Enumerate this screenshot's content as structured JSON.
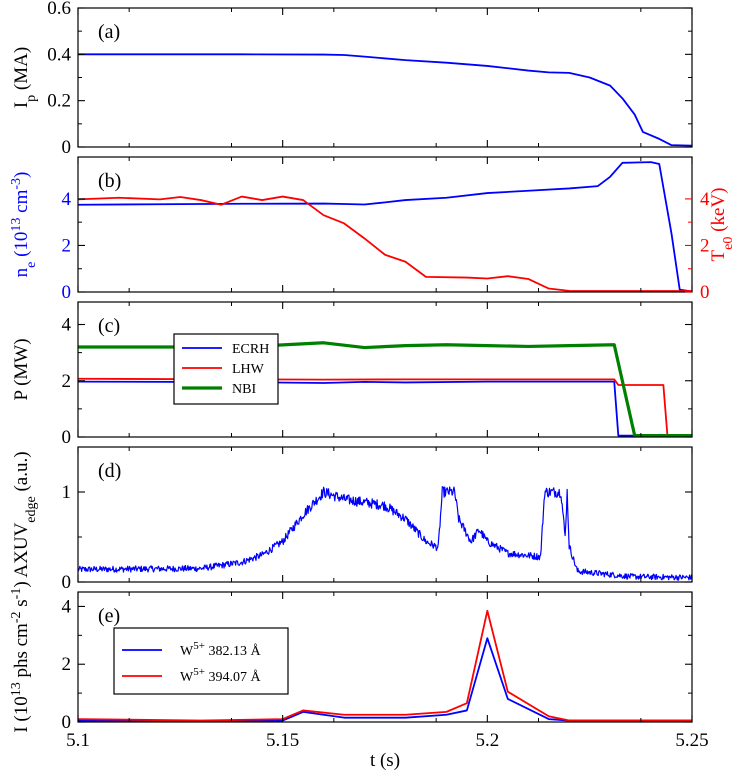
{
  "figure": {
    "x_axis": {
      "label": "t (s)",
      "range": [
        5.1,
        5.25
      ],
      "ticks": [
        "5.1",
        "5.15",
        "5.2",
        "5.25"
      ],
      "tick_values": [
        5.1,
        5.15,
        5.2,
        5.25
      ]
    },
    "colors": {
      "blue": "#0000ff",
      "red": "#ff0000",
      "green": "#008000",
      "axis": "#000000"
    }
  },
  "chart_data": [
    {
      "panel": "a",
      "type": "line",
      "tag": "(a)",
      "ylabel": {
        "main": "I",
        "sub": "p",
        "suffix": " (MA)"
      },
      "ylim": [
        0,
        0.6
      ],
      "yticks": [
        {
          "v": 0,
          "t": "0"
        },
        {
          "v": 0.2,
          "t": "0.2"
        },
        {
          "v": 0.4,
          "t": "0.4"
        },
        {
          "v": 0.6,
          "t": "0.6"
        }
      ],
      "series": [
        {
          "name": "Ip",
          "color": "#0000ff",
          "width": 1.8,
          "points": [
            [
              5.1,
              0.4
            ],
            [
              5.12,
              0.4
            ],
            [
              5.14,
              0.4
            ],
            [
              5.16,
              0.399
            ],
            [
              5.165,
              0.397
            ],
            [
              5.17,
              0.39
            ],
            [
              5.18,
              0.375
            ],
            [
              5.19,
              0.364
            ],
            [
              5.2,
              0.35
            ],
            [
              5.21,
              0.33
            ],
            [
              5.215,
              0.322
            ],
            [
              5.22,
              0.32
            ],
            [
              5.225,
              0.3
            ],
            [
              5.23,
              0.265
            ],
            [
              5.233,
              0.21
            ],
            [
              5.236,
              0.14
            ],
            [
              5.238,
              0.065
            ],
            [
              5.242,
              0.035
            ],
            [
              5.245,
              0.008
            ],
            [
              5.25,
              0.006
            ]
          ]
        }
      ]
    },
    {
      "panel": "b",
      "type": "line",
      "tag": "(b)",
      "ylabel": {
        "main": "n",
        "sub": "e",
        "suffix": " (10",
        "sup": "13",
        "tail": " cm",
        "sup2": "-3",
        "end": ")"
      },
      "ylim": [
        0,
        5.8
      ],
      "yticks": [
        {
          "v": 0,
          "t": "0"
        },
        {
          "v": 2,
          "t": "2"
        },
        {
          "v": 4,
          "t": "4"
        }
      ],
      "ylabel_right": {
        "main": "T",
        "sub": "e0",
        "suffix": " (keV)"
      },
      "ylim_right": [
        0,
        5.8
      ],
      "yticks_right": [
        {
          "v": 0,
          "t": "0"
        },
        {
          "v": 2,
          "t": "2"
        },
        {
          "v": 4,
          "t": "4"
        }
      ],
      "series": [
        {
          "name": "ne",
          "color": "#0000ff",
          "width": 1.8,
          "axis": "left",
          "points": [
            [
              5.1,
              3.75
            ],
            [
              5.12,
              3.77
            ],
            [
              5.14,
              3.79
            ],
            [
              5.16,
              3.8
            ],
            [
              5.165,
              3.78
            ],
            [
              5.17,
              3.76
            ],
            [
              5.175,
              3.85
            ],
            [
              5.18,
              3.95
            ],
            [
              5.19,
              4.05
            ],
            [
              5.2,
              4.25
            ],
            [
              5.21,
              4.35
            ],
            [
              5.22,
              4.45
            ],
            [
              5.227,
              4.55
            ],
            [
              5.23,
              4.95
            ],
            [
              5.233,
              5.55
            ],
            [
              5.24,
              5.58
            ],
            [
              5.242,
              5.5
            ],
            [
              5.245,
              2.5
            ],
            [
              5.247,
              0.1
            ],
            [
              5.25,
              0.02
            ]
          ]
        },
        {
          "name": "Te0",
          "color": "#ff0000",
          "width": 1.8,
          "axis": "right",
          "points": [
            [
              5.1,
              3.98
            ],
            [
              5.11,
              4.05
            ],
            [
              5.12,
              3.98
            ],
            [
              5.125,
              4.08
            ],
            [
              5.13,
              3.95
            ],
            [
              5.135,
              3.75
            ],
            [
              5.14,
              4.1
            ],
            [
              5.145,
              3.95
            ],
            [
              5.15,
              4.1
            ],
            [
              5.155,
              3.95
            ],
            [
              5.16,
              3.3
            ],
            [
              5.165,
              2.95
            ],
            [
              5.17,
              2.3
            ],
            [
              5.175,
              1.6
            ],
            [
              5.18,
              1.3
            ],
            [
              5.185,
              0.65
            ],
            [
              5.195,
              0.62
            ],
            [
              5.2,
              0.58
            ],
            [
              5.205,
              0.68
            ],
            [
              5.21,
              0.56
            ],
            [
              5.215,
              0.15
            ],
            [
              5.22,
              0.05
            ],
            [
              5.24,
              0.04
            ],
            [
              5.25,
              0.04
            ]
          ]
        }
      ]
    },
    {
      "panel": "c",
      "type": "line",
      "tag": "(c)",
      "ylabel": {
        "main": "P (MW)"
      },
      "ylim": [
        0,
        4.8
      ],
      "yticks": [
        {
          "v": 0,
          "t": "0"
        },
        {
          "v": 2,
          "t": "2"
        },
        {
          "v": 4,
          "t": "4"
        }
      ],
      "legend": [
        "ECRH",
        "LHW",
        "NBI"
      ],
      "series": [
        {
          "name": "ECRH",
          "color": "#0000ff",
          "width": 1.8,
          "points": [
            [
              5.1,
              1.97
            ],
            [
              5.14,
              1.95
            ],
            [
              5.16,
              1.92
            ],
            [
              5.17,
              1.96
            ],
            [
              5.18,
              1.94
            ],
            [
              5.2,
              1.97
            ],
            [
              5.22,
              1.97
            ],
            [
              5.231,
              1.97
            ],
            [
              5.232,
              0.05
            ],
            [
              5.25,
              0.05
            ]
          ]
        },
        {
          "name": "LHW",
          "color": "#ff0000",
          "width": 1.8,
          "points": [
            [
              5.1,
              2.07
            ],
            [
              5.14,
              2.05
            ],
            [
              5.16,
              2.04
            ],
            [
              5.18,
              2.05
            ],
            [
              5.2,
              2.05
            ],
            [
              5.22,
              2.05
            ],
            [
              5.231,
              2.05
            ],
            [
              5.232,
              1.85
            ],
            [
              5.243,
              1.85
            ],
            [
              5.244,
              0.05
            ],
            [
              5.25,
              0.05
            ]
          ]
        },
        {
          "name": "NBI",
          "color": "#008000",
          "width": 3.2,
          "points": [
            [
              5.1,
              3.2
            ],
            [
              5.12,
              3.2
            ],
            [
              5.14,
              3.2
            ],
            [
              5.16,
              3.35
            ],
            [
              5.17,
              3.18
            ],
            [
              5.18,
              3.25
            ],
            [
              5.19,
              3.28
            ],
            [
              5.2,
              3.25
            ],
            [
              5.21,
              3.22
            ],
            [
              5.22,
              3.25
            ],
            [
              5.231,
              3.28
            ],
            [
              5.236,
              0.05
            ],
            [
              5.25,
              0.05
            ]
          ]
        }
      ]
    },
    {
      "panel": "d",
      "type": "line",
      "tag": "(d)",
      "ylabel": {
        "main": "AXUV",
        "sub": "edge",
        "suffix": " (a.u.)"
      },
      "ylim": [
        0,
        1.5
      ],
      "yticks": [
        {
          "v": 0,
          "t": "0"
        },
        {
          "v": 1,
          "t": "1"
        }
      ],
      "noisy": true,
      "series": [
        {
          "name": "AXUV",
          "color": "#0000ff",
          "width": 1.2,
          "points": [
            [
              5.1,
              0.14
            ],
            [
              5.13,
              0.15
            ],
            [
              5.14,
              0.22
            ],
            [
              5.145,
              0.3
            ],
            [
              5.15,
              0.45
            ],
            [
              5.155,
              0.75
            ],
            [
              5.16,
              1.0
            ],
            [
              5.165,
              0.92
            ],
            [
              5.175,
              0.85
            ],
            [
              5.18,
              0.7
            ],
            [
              5.185,
              0.45
            ],
            [
              5.188,
              0.38
            ],
            [
              5.189,
              1.0
            ],
            [
              5.192,
              1.0
            ],
            [
              5.193,
              0.7
            ],
            [
              5.196,
              0.45
            ],
            [
              5.198,
              0.58
            ],
            [
              5.2,
              0.45
            ],
            [
              5.205,
              0.32
            ],
            [
              5.213,
              0.28
            ],
            [
              5.214,
              1.0
            ],
            [
              5.218,
              1.0
            ],
            [
              5.219,
              0.5
            ],
            [
              5.2195,
              1.0
            ],
            [
              5.22,
              0.4
            ],
            [
              5.222,
              0.12
            ],
            [
              5.235,
              0.06
            ],
            [
              5.25,
              0.05
            ]
          ]
        }
      ]
    },
    {
      "panel": "e",
      "type": "line",
      "tag": "(e)",
      "ylabel": {
        "main": "I (10",
        "sup": "13",
        "suffix": " phs cm",
        "sup2": "-2",
        "tail": " s",
        "sup3": "-1",
        "end": ")"
      },
      "ylim": [
        0,
        4.5
      ],
      "yticks": [
        {
          "v": 0,
          "t": "0"
        },
        {
          "v": 2,
          "t": "2"
        },
        {
          "v": 4,
          "t": "4"
        }
      ],
      "legend": [
        {
          "prefix": "W",
          "sup": "5+",
          "suffix": " 382.13 Å"
        },
        {
          "prefix": "W",
          "sup": "5+",
          "suffix": " 394.07 Å"
        }
      ],
      "series": [
        {
          "name": "W5+ 382.13 Å",
          "color": "#0000ff",
          "width": 1.8,
          "points": [
            [
              5.1,
              0.05
            ],
            [
              5.14,
              0.02
            ],
            [
              5.15,
              0.05
            ],
            [
              5.155,
              0.35
            ],
            [
              5.165,
              0.15
            ],
            [
              5.18,
              0.15
            ],
            [
              5.19,
              0.25
            ],
            [
              5.195,
              0.4
            ],
            [
              5.2,
              2.9
            ],
            [
              5.205,
              0.8
            ],
            [
              5.215,
              0.1
            ],
            [
              5.22,
              0.05
            ],
            [
              5.25,
              0.05
            ]
          ]
        },
        {
          "name": "W5+ 394.07 Å",
          "color": "#ff0000",
          "width": 1.8,
          "points": [
            [
              5.1,
              0.1
            ],
            [
              5.13,
              0.05
            ],
            [
              5.15,
              0.1
            ],
            [
              5.155,
              0.4
            ],
            [
              5.165,
              0.25
            ],
            [
              5.18,
              0.25
            ],
            [
              5.19,
              0.35
            ],
            [
              5.195,
              0.65
            ],
            [
              5.2,
              3.85
            ],
            [
              5.205,
              1.05
            ],
            [
              5.215,
              0.2
            ],
            [
              5.22,
              0.05
            ],
            [
              5.25,
              0.05
            ]
          ]
        }
      ]
    }
  ]
}
